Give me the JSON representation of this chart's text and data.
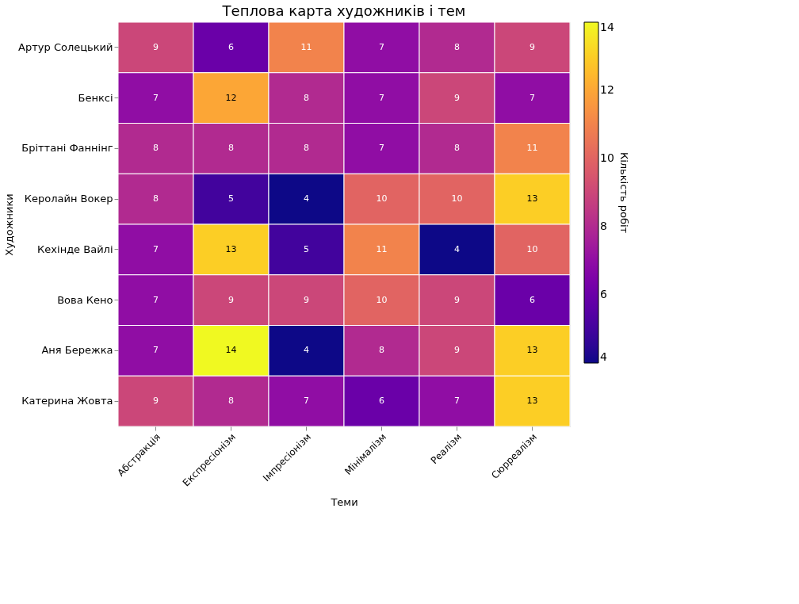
{
  "chart_data": [
    {
      "type": "heatmap",
      "title": "Теплова карта художників і тем",
      "xlabel": "Теми",
      "ylabel": "Художники",
      "clabel": "Кількість робіт",
      "categories": [
        "Абстракція",
        "Експресіонізм",
        "Імпресіонізм",
        "Мінімалізм",
        "Реалізм",
        "Сюрреалізм"
      ],
      "y_categories": [
        "Артур Солецький",
        "Бенксі",
        "Бріттані Фаннінг",
        "Керолайн Вокер",
        "Кехінде Вайлі",
        "Вова Кено",
        "Аня Бережка",
        "Катерина Жовта"
      ],
      "cells": [
        [
          9,
          6,
          11,
          7,
          8,
          9
        ],
        [
          7,
          12,
          8,
          7,
          9,
          7
        ],
        [
          8,
          8,
          8,
          7,
          8,
          11
        ],
        [
          8,
          5,
          4,
          10,
          10,
          13
        ],
        [
          7,
          13,
          5,
          11,
          4,
          10
        ],
        [
          7,
          9,
          9,
          10,
          9,
          6
        ],
        [
          7,
          14,
          4,
          8,
          9,
          13
        ],
        [
          9,
          8,
          7,
          6,
          7,
          13
        ]
      ],
      "clim": [
        4,
        14
      ],
      "cticks": [
        4,
        6,
        8,
        10,
        12,
        14
      ],
      "data_labels": true
    }
  ]
}
